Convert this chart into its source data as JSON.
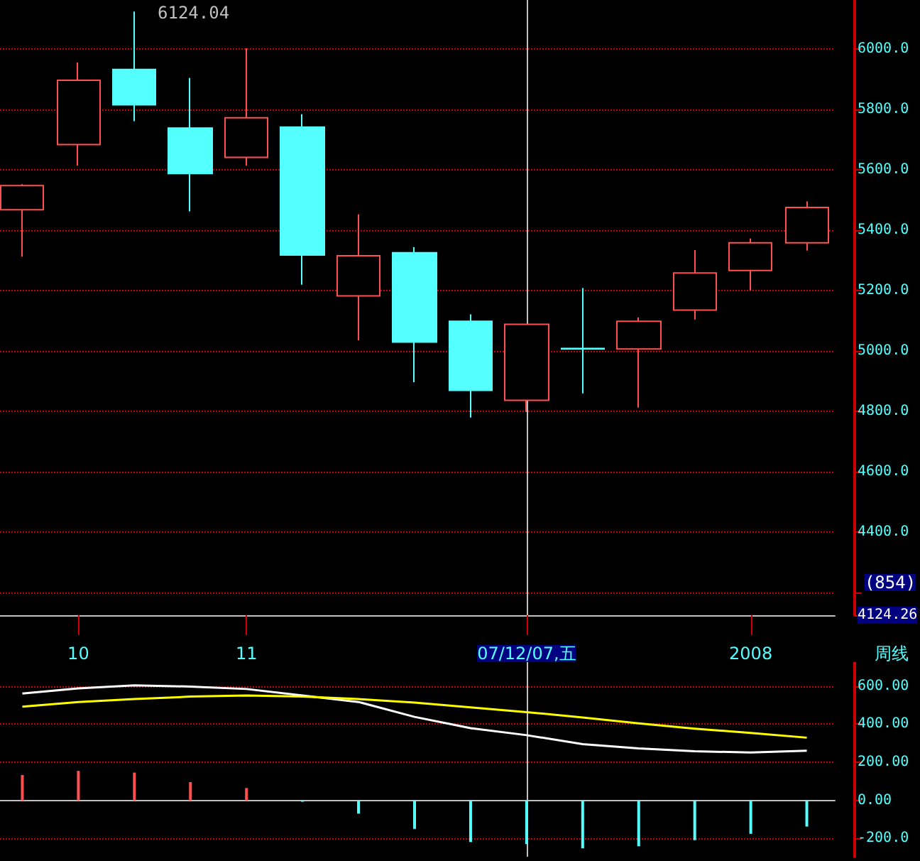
{
  "chart_data": [
    {
      "type": "candlestick",
      "categories": [
        null,
        "10",
        null,
        null,
        "11",
        null,
        null,
        null,
        null,
        "07/12/07,五",
        null,
        null,
        null,
        "2008",
        null
      ],
      "ohlc": [
        [
          5467,
          5552,
          5312,
          5547
        ],
        [
          5683,
          5955,
          5614,
          5896
        ],
        [
          5932,
          6124.04,
          5761,
          5815
        ],
        [
          5738,
          5904,
          5462,
          5587
        ],
        [
          5641,
          6002,
          5614,
          5772
        ],
        [
          5741,
          5784,
          5219,
          5317
        ],
        [
          5182,
          5452,
          5035,
          5315
        ],
        [
          5325,
          5343,
          4896,
          5029
        ],
        [
          5098,
          5121,
          4779,
          4869
        ],
        [
          4836,
          5088,
          4797,
          5088
        ],
        [
          5008,
          5208,
          4859,
          5006
        ],
        [
          5006,
          5111,
          4812,
          5098
        ],
        [
          5135,
          5334,
          5104,
          5258
        ],
        [
          5266,
          5372,
          5200,
          5358
        ],
        [
          5358,
          5495,
          5332,
          5475
        ]
      ],
      "colors": [
        "#ff5050",
        "#ff5050",
        "#54ffff",
        "#54ffff",
        "#ff5050",
        "#54ffff",
        "#ff5050",
        "#54ffff",
        "#54ffff",
        "#ff5050",
        "#54ffff",
        "#ff5050",
        "#ff5050",
        "#ff5050",
        "#ff5050"
      ],
      "ylim": [
        4124.26,
        6162
      ],
      "yticks": [
        {
          "value": 4124.26,
          "label": "4124.26"
        },
        {
          "value": 4200,
          "label": null
        },
        {
          "value": 4400,
          "label": "4400.0"
        },
        {
          "value": 4600,
          "label": "4600.0"
        },
        {
          "value": 4800,
          "label": "4800.0"
        },
        {
          "value": 5000,
          "label": "5000.0"
        },
        {
          "value": 5200,
          "label": "5200.0"
        },
        {
          "value": 5400,
          "label": "5400.0"
        },
        {
          "value": 5600,
          "label": "5600.0"
        },
        {
          "value": 5800,
          "label": "5800.0"
        },
        {
          "value": 6000,
          "label": "6000.0"
        }
      ],
      "grid": "y",
      "ref_lines": [
        {
          "axis": "x",
          "value": "07/12/07,五",
          "color": "#c0c0c0"
        }
      ],
      "annotations": [
        "6124.04",
        "(854)",
        "周线"
      ]
    },
    {
      "type": "bar",
      "categories": [
        null,
        "10",
        null,
        null,
        "11",
        null,
        null,
        null,
        null,
        "07/12/07,五",
        null,
        null,
        null,
        "2008",
        null
      ],
      "tick_labels": "y",
      "series": [
        {
          "values": [
            133,
            155,
            146,
            96,
            65,
            -7,
            -69,
            -149,
            -218,
            -229,
            -251,
            -240,
            -208,
            -175,
            -137
          ],
          "colors": [
            "#ff5050",
            "#ff5050",
            "#ff5050",
            "#ff5050",
            "#ff5050",
            "#54ffff",
            "#54ffff",
            "#54ffff",
            "#54ffff",
            "#54ffff",
            "#54ffff",
            "#54ffff",
            "#54ffff",
            "#54ffff",
            "#54ffff"
          ]
        },
        {
          "type": "line",
          "color": "#ffffff",
          "values": [
            560,
            587,
            603,
            597,
            584,
            550,
            516,
            438,
            379,
            342,
            295,
            273,
            258,
            251,
            261
          ]
        },
        {
          "type": "line",
          "color": "#ffff00",
          "values": [
            491,
            516,
            531,
            544,
            550,
            544,
            531,
            513,
            488,
            463,
            435,
            404,
            376,
            354,
            329
          ]
        }
      ],
      "ylim": [
        -295,
        725
      ],
      "yticks": [
        {
          "value": -200,
          "label": "-200.0"
        },
        {
          "value": 0,
          "label": "0.00"
        },
        {
          "value": 200,
          "label": "200.00"
        },
        {
          "value": 400,
          "label": "400.00"
        },
        {
          "value": 600,
          "label": "600.00"
        }
      ],
      "grid": "y",
      "ref_lines": [
        {
          "axis": "x",
          "value": "07/12/07,五",
          "color": "#c0c0c0"
        }
      ]
    }
  ]
}
